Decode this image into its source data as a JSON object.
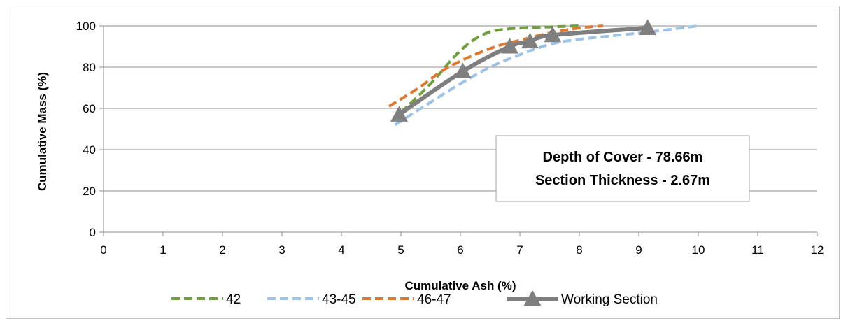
{
  "chart_data": {
    "type": "line",
    "title": "",
    "xlabel": "Cumulative Ash (%)",
    "ylabel": "Cumulative Mass (%)",
    "xlim": [
      0,
      12
    ],
    "ylim": [
      0,
      100
    ],
    "x_ticks": [
      "0",
      "1",
      "2",
      "3",
      "4",
      "5",
      "6",
      "7",
      "8",
      "9",
      "10",
      "11",
      "12"
    ],
    "y_ticks": [
      "0",
      "20",
      "40",
      "60",
      "80",
      "100"
    ],
    "grid": "horizontal",
    "legend_position": "bottom",
    "annotation": [
      "Depth of Cover - 78.66m",
      "Section Thickness - 2.67m"
    ],
    "series": [
      {
        "name": "42",
        "color": "#70a03c",
        "style": "dashed",
        "marker": "none",
        "points": [
          [
            5.0,
            58
          ],
          [
            5.5,
            72
          ],
          [
            6.0,
            88
          ],
          [
            6.4,
            96
          ],
          [
            6.8,
            98.5
          ],
          [
            7.5,
            99.5
          ],
          [
            8.0,
            100
          ]
        ]
      },
      {
        "name": "43-45",
        "color": "#9dc3e6",
        "style": "dashed",
        "marker": "none",
        "points": [
          [
            4.9,
            52
          ],
          [
            5.5,
            63
          ],
          [
            6.0,
            72
          ],
          [
            6.5,
            80
          ],
          [
            7.0,
            86
          ],
          [
            7.5,
            91
          ],
          [
            8.0,
            93.5
          ],
          [
            9.0,
            96.5
          ],
          [
            10.0,
            100
          ]
        ]
      },
      {
        "name": "46-47",
        "color": "#e0772e",
        "style": "dashed",
        "marker": "none",
        "points": [
          [
            4.8,
            61
          ],
          [
            5.3,
            70
          ],
          [
            5.8,
            80
          ],
          [
            6.5,
            89
          ],
          [
            7.0,
            93
          ],
          [
            7.5,
            96.5
          ],
          [
            8.0,
            99
          ],
          [
            8.4,
            100
          ]
        ]
      },
      {
        "name": "Working Section",
        "color": "#7f7f7f",
        "style": "solid",
        "marker": "triangle",
        "points": [
          [
            4.97,
            57
          ],
          [
            6.04,
            78
          ],
          [
            6.83,
            90
          ],
          [
            7.17,
            92.5
          ],
          [
            7.55,
            95.5
          ],
          [
            9.15,
            99
          ]
        ]
      }
    ]
  }
}
